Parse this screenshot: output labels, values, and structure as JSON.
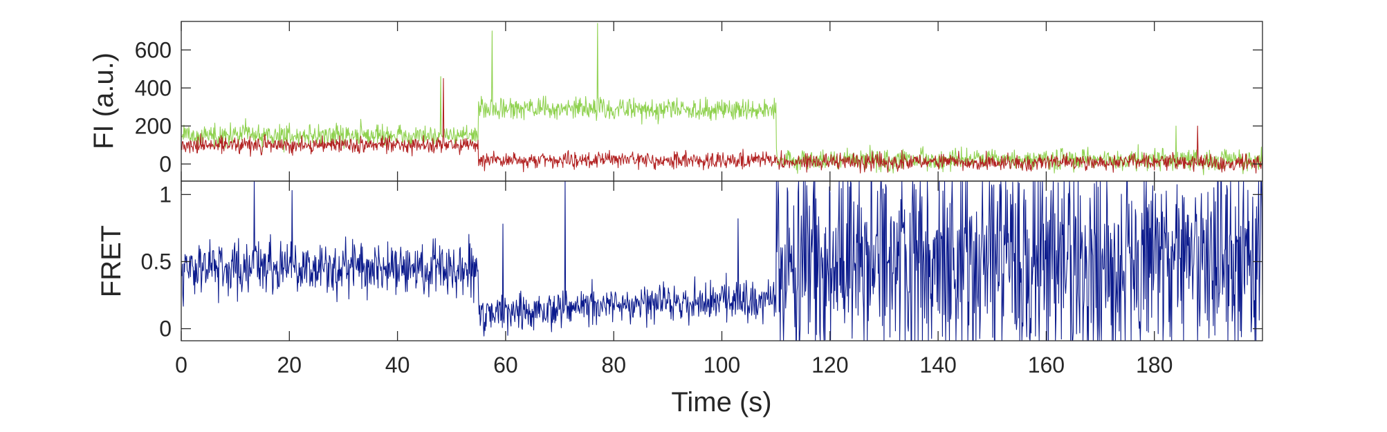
{
  "chart_data": [
    {
      "type": "line",
      "ylabel": "FI (a.u.)",
      "xlim": [
        0,
        200
      ],
      "ylim": [
        -90,
        750
      ],
      "yticks": [
        0,
        200,
        400,
        600
      ],
      "grid": false,
      "legend": "none",
      "series": [
        {
          "color": "#8fd14f",
          "noise": 40,
          "segments": [
            {
              "x": [
                0,
                55
              ],
              "level": 150,
              "trend": 0
            },
            {
              "x": [
                55,
                110
              ],
              "level": 290,
              "trend": 0
            },
            {
              "x": [
                110,
                200
              ],
              "level": 20,
              "trend": 0
            }
          ],
          "peaks": [
            {
              "x": 57.5,
              "y": 700
            },
            {
              "x": 77,
              "y": 740
            },
            {
              "x": 48,
              "y": 460
            },
            {
              "x": 184,
              "y": 200
            }
          ]
        },
        {
          "color": "#b22222",
          "noise": 30,
          "segments": [
            {
              "x": [
                0,
                55
              ],
              "level": 100,
              "trend": 0
            },
            {
              "x": [
                55,
                110
              ],
              "level": 20,
              "trend": 0
            },
            {
              "x": [
                110,
                200
              ],
              "level": 10,
              "trend": 0
            }
          ],
          "peaks": [
            {
              "x": 48.5,
              "y": 450
            },
            {
              "x": 188,
              "y": 200
            }
          ]
        }
      ]
    },
    {
      "type": "line",
      "xlabel": "Time (s)",
      "ylabel": "FRET",
      "xlim": [
        0,
        200
      ],
      "ylim": [
        -0.09,
        1.1
      ],
      "xticks": [
        0,
        20,
        40,
        60,
        80,
        100,
        120,
        140,
        160,
        180
      ],
      "yticks": [
        0,
        0.5,
        1
      ],
      "ytick_labels": [
        "0",
        "0.5",
        "1"
      ],
      "grid": false,
      "legend": "none",
      "series": [
        {
          "color": "#0b1a8c",
          "segments": [
            {
              "x": [
                0,
                55
              ],
              "level": 0.45,
              "noise": 0.14,
              "trend": 0
            },
            {
              "x": [
                55,
                110
              ],
              "level": 0.12,
              "noise": 0.1,
              "trend": 0.002
            },
            {
              "x": [
                110,
                200
              ],
              "level": 0.5,
              "noise": 0.55,
              "trend": 0
            }
          ],
          "peaks": [
            {
              "x": 13.5,
              "y": 1.1
            },
            {
              "x": 71,
              "y": 1.1
            },
            {
              "x": 20.5,
              "y": 1.03
            },
            {
              "x": 59.5,
              "y": 0.78
            },
            {
              "x": 103,
              "y": 0.82
            }
          ]
        }
      ]
    }
  ]
}
